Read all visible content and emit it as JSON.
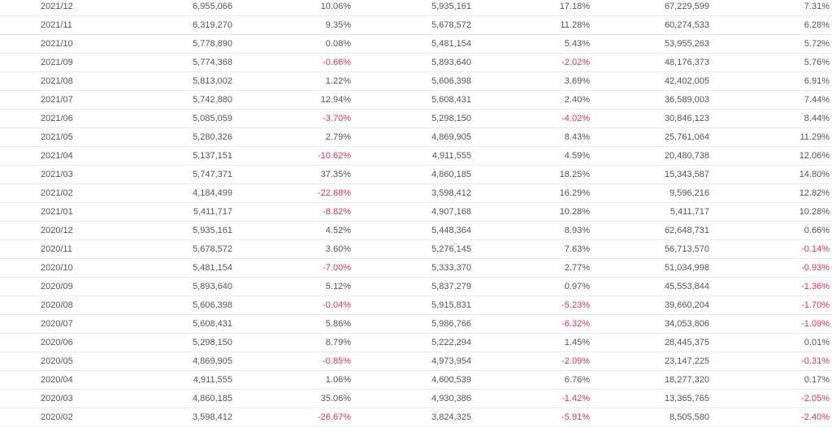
{
  "table": {
    "rows": [
      [
        "2021/12",
        "6,955,066",
        "10.06%",
        "5,935,161",
        "17.18%",
        "67,229,599",
        "7.31%"
      ],
      [
        "2021/11",
        "6,319,270",
        "9.35%",
        "5,678,572",
        "11.28%",
        "60,274,533",
        "6.28%"
      ],
      [
        "2021/10",
        "5,778,890",
        "0.08%",
        "5,481,154",
        "5.43%",
        "53,955,263",
        "5.72%"
      ],
      [
        "2021/09",
        "5,774,368",
        "-0.66%",
        "5,893,640",
        "-2.02%",
        "48,176,373",
        "5.76%"
      ],
      [
        "2021/08",
        "5,813,002",
        "1.22%",
        "5,606,398",
        "3.69%",
        "42,402,005",
        "6.91%"
      ],
      [
        "2021/07",
        "5,742,880",
        "12.94%",
        "5,608,431",
        "2.40%",
        "36,589,003",
        "7.44%"
      ],
      [
        "2021/06",
        "5,085,059",
        "-3.70%",
        "5,298,150",
        "-4.02%",
        "30,846,123",
        "8.44%"
      ],
      [
        "2021/05",
        "5,280,326",
        "2.79%",
        "4,869,905",
        "8.43%",
        "25,761,064",
        "11.29%"
      ],
      [
        "2021/04",
        "5,137,151",
        "-10.62%",
        "4,911,555",
        "4.59%",
        "20,480,738",
        "12.06%"
      ],
      [
        "2021/03",
        "5,747,371",
        "37.35%",
        "4,860,185",
        "18.25%",
        "15,343,587",
        "14.80%"
      ],
      [
        "2021/02",
        "4,184,499",
        "-22.68%",
        "3,598,412",
        "16.29%",
        "9,596,216",
        "12.82%"
      ],
      [
        "2021/01",
        "5,411,717",
        "-8.82%",
        "4,907,168",
        "10.28%",
        "5,411,717",
        "10.28%"
      ],
      [
        "2020/12",
        "5,935,161",
        "4.52%",
        "5,448,364",
        "8.93%",
        "62,648,731",
        "0.66%"
      ],
      [
        "2020/11",
        "5,678,572",
        "3.60%",
        "5,276,145",
        "7.63%",
        "56,713,570",
        "-0.14%"
      ],
      [
        "2020/10",
        "5,481,154",
        "-7.00%",
        "5,333,370",
        "2.77%",
        "51,034,998",
        "-0.93%"
      ],
      [
        "2020/09",
        "5,893,640",
        "5.12%",
        "5,837,279",
        "0.97%",
        "45,553,844",
        "-1.36%"
      ],
      [
        "2020/08",
        "5,606,398",
        "-0.04%",
        "5,915,831",
        "-5.23%",
        "39,660,204",
        "-1.70%"
      ],
      [
        "2020/07",
        "5,608,431",
        "5.86%",
        "5,986,766",
        "-6.32%",
        "34,053,806",
        "-1.09%"
      ],
      [
        "2020/06",
        "5,298,150",
        "8.79%",
        "5,222,294",
        "1.45%",
        "28,445,375",
        "0.01%"
      ],
      [
        "2020/05",
        "4,869,905",
        "-0.85%",
        "4,973,954",
        "-2.09%",
        "23,147,225",
        "-0.31%"
      ],
      [
        "2020/04",
        "4,911,555",
        "1.06%",
        "4,600,539",
        "6.76%",
        "18,277,320",
        "0.17%"
      ],
      [
        "2020/03",
        "4,860,185",
        "35.06%",
        "4,930,386",
        "-1.42%",
        "13,365,765",
        "-2.05%"
      ],
      [
        "2020/02",
        "3,598,412",
        "-26.67%",
        "3,824,325",
        "-5.91%",
        "8,505,580",
        "-2.40%"
      ]
    ]
  },
  "colors": {
    "text": "#555555",
    "negative": "#f5304f",
    "divider": "#e9e9e9"
  }
}
